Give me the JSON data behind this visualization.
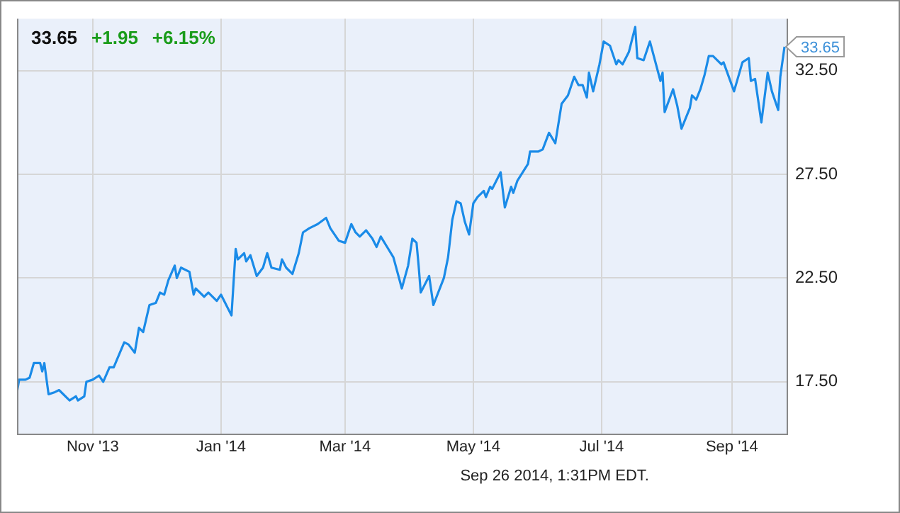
{
  "chart_data": {
    "type": "line",
    "color": "#1a8be8",
    "marker": "none",
    "grid": true,
    "legend": false,
    "xlim": [
      "2013-09-26",
      "2014-09-27"
    ],
    "xticks": [
      {
        "value": "2013-11-01",
        "label": "Nov '13"
      },
      {
        "value": "2014-01-01",
        "label": "Jan '14"
      },
      {
        "value": "2014-03-01",
        "label": "Mar '14"
      },
      {
        "value": "2014-05-01",
        "label": "May '14"
      },
      {
        "value": "2014-07-01",
        "label": "Jul '14"
      },
      {
        "value": "2014-09-01",
        "label": "Sep '14"
      }
    ],
    "ylim": [
      15,
      35
    ],
    "yticks": [
      {
        "value": 17.5,
        "label": "17.50"
      },
      {
        "value": 22.5,
        "label": "22.50"
      },
      {
        "value": 27.5,
        "label": "27.50"
      },
      {
        "value": 32.5,
        "label": "32.50"
      }
    ],
    "annotations": [
      "33.65",
      "+1.95",
      "+6.15%",
      "Sep 26 2014, 1:31PM EDT.",
      {
        "text": "33.65",
        "x": "2014-09-26",
        "y": 33.65
      }
    ],
    "x": [
      "2013-09-26",
      "2013-09-27",
      "2013-09-30",
      "2013-10-02",
      "2013-10-04",
      "2013-10-07",
      "2013-10-08",
      "2013-10-09",
      "2013-10-11",
      "2013-10-14",
      "2013-10-16",
      "2013-10-21",
      "2013-10-24",
      "2013-10-25",
      "2013-10-28",
      "2013-10-29",
      "2013-11-01",
      "2013-11-04",
      "2013-11-06",
      "2013-11-09",
      "2013-11-11",
      "2013-11-16",
      "2013-11-18",
      "2013-11-21",
      "2013-11-23",
      "2013-11-25",
      "2013-11-28",
      "2013-12-01",
      "2013-12-03",
      "2013-12-05",
      "2013-12-07",
      "2013-12-10",
      "2013-12-11",
      "2013-12-13",
      "2013-12-17",
      "2013-12-19",
      "2013-12-20",
      "2013-12-24",
      "2013-12-26",
      "2013-12-30",
      "2014-01-01",
      "2014-01-03",
      "2014-01-06",
      "2014-01-08",
      "2014-01-09",
      "2014-01-12",
      "2014-01-13",
      "2014-01-15",
      "2014-01-18",
      "2014-01-21",
      "2014-01-23",
      "2014-01-25",
      "2014-01-29",
      "2014-01-30",
      "2014-02-01",
      "2014-02-04",
      "2014-02-07",
      "2014-02-09",
      "2014-02-12",
      "2014-02-16",
      "2014-02-20",
      "2014-02-22",
      "2014-02-26",
      "2014-03-01",
      "2014-03-04",
      "2014-03-06",
      "2014-03-08",
      "2014-03-11",
      "2014-03-14",
      "2014-03-16",
      "2014-03-18",
      "2014-03-21",
      "2014-03-24",
      "2014-03-28",
      "2014-03-31",
      "2014-04-02",
      "2014-04-04",
      "2014-04-05",
      "2014-04-06",
      "2014-04-10",
      "2014-04-12",
      "2014-04-17",
      "2014-04-19",
      "2014-04-21",
      "2014-04-23",
      "2014-04-25",
      "2014-04-27",
      "2014-04-29",
      "2014-05-01",
      "2014-05-03",
      "2014-05-06",
      "2014-05-07",
      "2014-05-09",
      "2014-05-10",
      "2014-05-14",
      "2014-05-16",
      "2014-05-19",
      "2014-05-20",
      "2014-05-22",
      "2014-05-27",
      "2014-05-28",
      "2014-06-01",
      "2014-06-03",
      "2014-06-06",
      "2014-06-09",
      "2014-06-12",
      "2014-06-15",
      "2014-06-18",
      "2014-06-20",
      "2014-06-22",
      "2014-06-24",
      "2014-06-25",
      "2014-06-27",
      "2014-06-30",
      "2014-07-02",
      "2014-07-05",
      "2014-07-08",
      "2014-07-09",
      "2014-07-11",
      "2014-07-14",
      "2014-07-17",
      "2014-07-18",
      "2014-07-21",
      "2014-07-24",
      "2014-07-29",
      "2014-07-30",
      "2014-07-31",
      "2014-08-04",
      "2014-08-06",
      "2014-08-08",
      "2014-08-12",
      "2014-08-13",
      "2014-08-15",
      "2014-08-17",
      "2014-08-19",
      "2014-08-21",
      "2014-08-23",
      "2014-08-27",
      "2014-08-28",
      "2014-09-02",
      "2014-09-06",
      "2014-09-09",
      "2014-09-10",
      "2014-09-12",
      "2014-09-15",
      "2014-09-18",
      "2014-09-20",
      "2014-09-23",
      "2014-09-24",
      "2014-09-26"
    ],
    "values": [
      17.0,
      17.6,
      17.6,
      17.7,
      18.4,
      18.4,
      18.0,
      18.4,
      16.9,
      17.0,
      17.1,
      16.6,
      16.8,
      16.6,
      16.8,
      17.5,
      17.6,
      17.8,
      17.5,
      18.2,
      18.2,
      19.4,
      19.3,
      18.9,
      20.1,
      19.9,
      21.2,
      21.3,
      21.8,
      21.7,
      22.4,
      23.1,
      22.5,
      23.0,
      22.8,
      21.7,
      22.0,
      21.6,
      21.8,
      21.4,
      21.7,
      21.3,
      20.7,
      23.9,
      23.4,
      23.7,
      23.3,
      23.6,
      22.6,
      23.0,
      23.7,
      23.0,
      22.9,
      23.4,
      23.0,
      22.7,
      23.7,
      24.7,
      24.9,
      25.1,
      25.4,
      24.9,
      24.3,
      24.2,
      25.1,
      24.7,
      24.5,
      24.8,
      24.4,
      24.0,
      24.5,
      24.0,
      23.5,
      22.0,
      23.1,
      24.4,
      24.2,
      23.1,
      21.8,
      22.6,
      21.2,
      22.5,
      23.5,
      25.3,
      26.2,
      26.1,
      25.2,
      24.6,
      26.1,
      26.4,
      26.7,
      26.4,
      26.9,
      26.8,
      27.6,
      25.9,
      26.9,
      26.6,
      27.2,
      28.0,
      28.6,
      28.6,
      28.7,
      29.5,
      29.0,
      30.9,
      31.3,
      32.2,
      31.8,
      31.8,
      31.2,
      32.4,
      31.5,
      32.8,
      33.9,
      33.7,
      32.8,
      33.0,
      32.8,
      33.4,
      34.6,
      33.1,
      33.0,
      33.9,
      32.0,
      32.4,
      30.5,
      31.6,
      30.8,
      29.7,
      30.7,
      31.3,
      31.1,
      31.6,
      32.3,
      33.2,
      33.2,
      32.8,
      32.9,
      31.5,
      32.9,
      33.1,
      32.0,
      32.1,
      30.0,
      32.4,
      31.5,
      30.6,
      32.2,
      33.65
    ]
  }
}
